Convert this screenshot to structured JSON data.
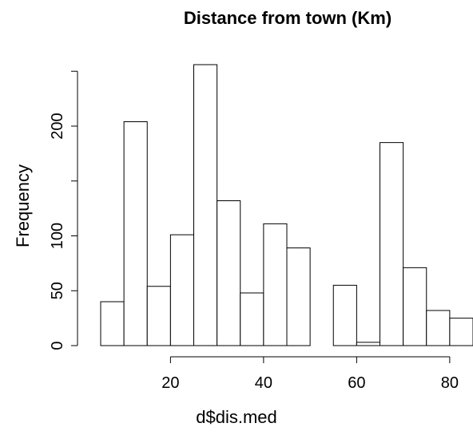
{
  "chart_data": {
    "type": "histogram",
    "title": "Distance from town (Km)",
    "x_label": "d$dis.med",
    "y_label": "Frequency",
    "bins": [
      5,
      10,
      15,
      20,
      25,
      30,
      35,
      40,
      45,
      50,
      55,
      60,
      65,
      70,
      75,
      80,
      85
    ],
    "values": [
      40,
      204,
      54,
      101,
      256,
      132,
      48,
      111,
      89,
      0,
      55,
      3,
      185,
      71,
      32,
      25
    ],
    "color": "#ffffff",
    "edge_color": "#000000",
    "xlim": [
      5,
      85
    ],
    "ylim": [
      0,
      256
    ],
    "xticks": [
      20,
      40,
      60,
      80
    ],
    "yticks": [
      0,
      50,
      100,
      {
        "value": 150,
        "label": null
      },
      200,
      {
        "value": 250,
        "label": null
      }
    ]
  }
}
